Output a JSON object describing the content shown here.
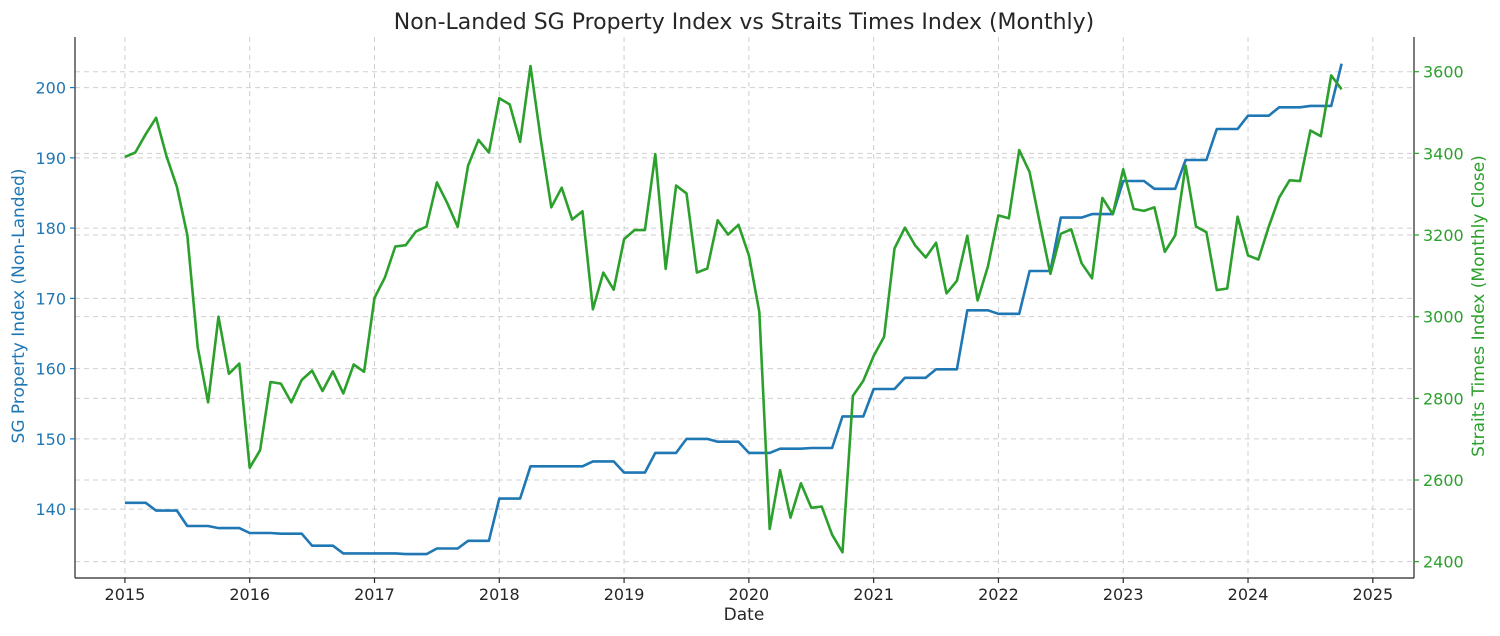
{
  "colors": {
    "left_series": "#1f77b4",
    "right_series": "#2ca02c",
    "text": "#262626"
  },
  "chart_data": {
    "type": "line",
    "title": "Non-Landed SG Property Index vs Straits Times Index (Monthly)",
    "xlabel": "Date",
    "ylabel_left": "SG Property Index (Non-Landed)",
    "ylabel_right": "Straits Times Index (Monthly Close)",
    "grid": true,
    "x_range": [
      2014.6,
      2025.33
    ],
    "x_ticks": [
      2015,
      2016,
      2017,
      2018,
      2019,
      2020,
      2021,
      2022,
      2023,
      2024,
      2025
    ],
    "y_left_range": [
      130.2,
      207.2
    ],
    "y_left_ticks": [
      140,
      150,
      160,
      170,
      180,
      190,
      200
    ],
    "y_right_range": [
      2360,
      3685
    ],
    "y_right_ticks": [
      2400,
      2600,
      2800,
      3000,
      3200,
      3400,
      3600
    ],
    "series": [
      {
        "name": "SG Property Index (Non-Landed)",
        "axis": "left",
        "x_start": "2015-01",
        "values": [
          140.9,
          140.9,
          140.9,
          139.8,
          139.8,
          139.8,
          137.6,
          137.6,
          137.6,
          137.3,
          137.3,
          137.3,
          136.6,
          136.6,
          136.6,
          136.5,
          136.5,
          136.5,
          134.8,
          134.8,
          134.8,
          133.7,
          133.7,
          133.7,
          133.7,
          133.7,
          133.7,
          133.6,
          133.6,
          133.6,
          134.4,
          134.4,
          134.4,
          135.5,
          135.5,
          135.5,
          141.5,
          141.5,
          141.5,
          146.1,
          146.1,
          146.1,
          146.1,
          146.1,
          146.1,
          146.8,
          146.8,
          146.8,
          145.2,
          145.2,
          145.2,
          148.0,
          148.0,
          148.0,
          150.0,
          150.0,
          150.0,
          149.6,
          149.6,
          149.6,
          148.0,
          148.0,
          148.0,
          148.6,
          148.6,
          148.6,
          148.7,
          148.7,
          148.7,
          153.2,
          153.2,
          153.2,
          157.1,
          157.1,
          157.1,
          158.7,
          158.7,
          158.7,
          159.9,
          159.9,
          159.9,
          168.3,
          168.3,
          168.3,
          167.8,
          167.8,
          167.8,
          173.9,
          173.9,
          173.9,
          181.5,
          181.5,
          181.5,
          182.0,
          182.0,
          182.0,
          186.7,
          186.7,
          186.7,
          185.6,
          185.6,
          185.6,
          189.7,
          189.7,
          189.7,
          194.1,
          194.1,
          194.1,
          196.0,
          196.0,
          196.0,
          197.2,
          197.2,
          197.2,
          197.4,
          197.4,
          197.4,
          203.4
        ]
      },
      {
        "name": "Straits Times Index (Monthly Close)",
        "axis": "right",
        "x_start": "2015-01",
        "values": [
          3391,
          3402,
          3447,
          3487,
          3393,
          3318,
          3200,
          2925,
          2790,
          3000,
          2860,
          2885,
          2630,
          2673,
          2840,
          2836,
          2790,
          2845,
          2868,
          2818,
          2866,
          2812,
          2883,
          2865,
          3046,
          3096,
          3172,
          3175,
          3209,
          3221,
          3329,
          3278,
          3220,
          3370,
          3433,
          3402,
          3535,
          3520,
          3428,
          3614,
          3432,
          3268,
          3316,
          3238,
          3258,
          3018,
          3108,
          3066,
          3190,
          3212,
          3212,
          3398,
          3117,
          3321,
          3302,
          3108,
          3118,
          3236,
          3201,
          3225,
          3150,
          3012,
          2480,
          2624,
          2508,
          2592,
          2532,
          2535,
          2466,
          2423,
          2806,
          2843,
          2904,
          2951,
          3167,
          3218,
          3174,
          3145,
          3181,
          3057,
          3088,
          3198,
          3040,
          3124,
          3248,
          3241,
          3408,
          3354,
          3227,
          3105,
          3203,
          3214,
          3131,
          3094,
          3291,
          3251,
          3361,
          3264,
          3259,
          3268,
          3159,
          3199,
          3370,
          3221,
          3207,
          3065,
          3069,
          3245,
          3150,
          3140,
          3221,
          3292,
          3334,
          3332,
          3456,
          3442,
          3591,
          3557
        ]
      }
    ]
  }
}
